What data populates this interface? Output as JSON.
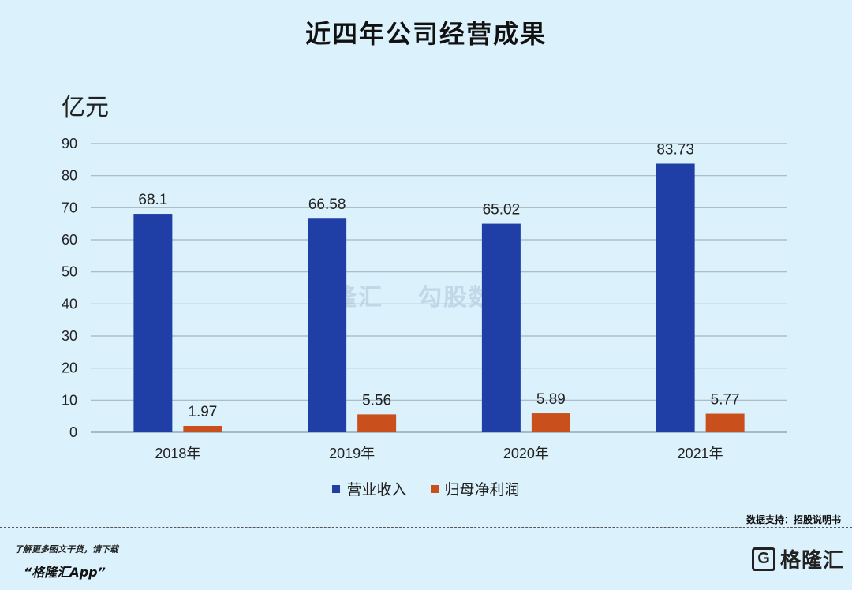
{
  "header": {
    "title": "近四年公司经营成果"
  },
  "chart_data": {
    "type": "bar",
    "unit_label": "亿元",
    "categories": [
      "2018年",
      "2019年",
      "2020年",
      "2021年"
    ],
    "series": [
      {
        "name": "营业收入",
        "color": "#1f3fa6",
        "values": [
          68.1,
          66.58,
          65.02,
          83.73
        ],
        "labels": [
          "68.1",
          "66.58",
          "65.02",
          "83.73"
        ]
      },
      {
        "name": "归母净利润",
        "color": "#c9501c",
        "values": [
          1.97,
          5.56,
          5.89,
          5.77
        ],
        "labels": [
          "1.97",
          "5.56",
          "5.89",
          "5.77"
        ]
      }
    ],
    "ylim": [
      0,
      90
    ],
    "yticks": [
      0,
      10,
      20,
      30,
      40,
      50,
      60,
      70,
      80,
      90
    ],
    "grid": true,
    "legend_position": "bottom"
  },
  "watermark": {
    "left": "格隆汇",
    "right": "勾股数据"
  },
  "footer": {
    "source": "数据支持：招股说明书",
    "promo_line1": "了解更多图文干货，请下载",
    "promo_line2": "“格隆汇App”",
    "logo_mark": "G",
    "logo_text": "格隆汇"
  }
}
